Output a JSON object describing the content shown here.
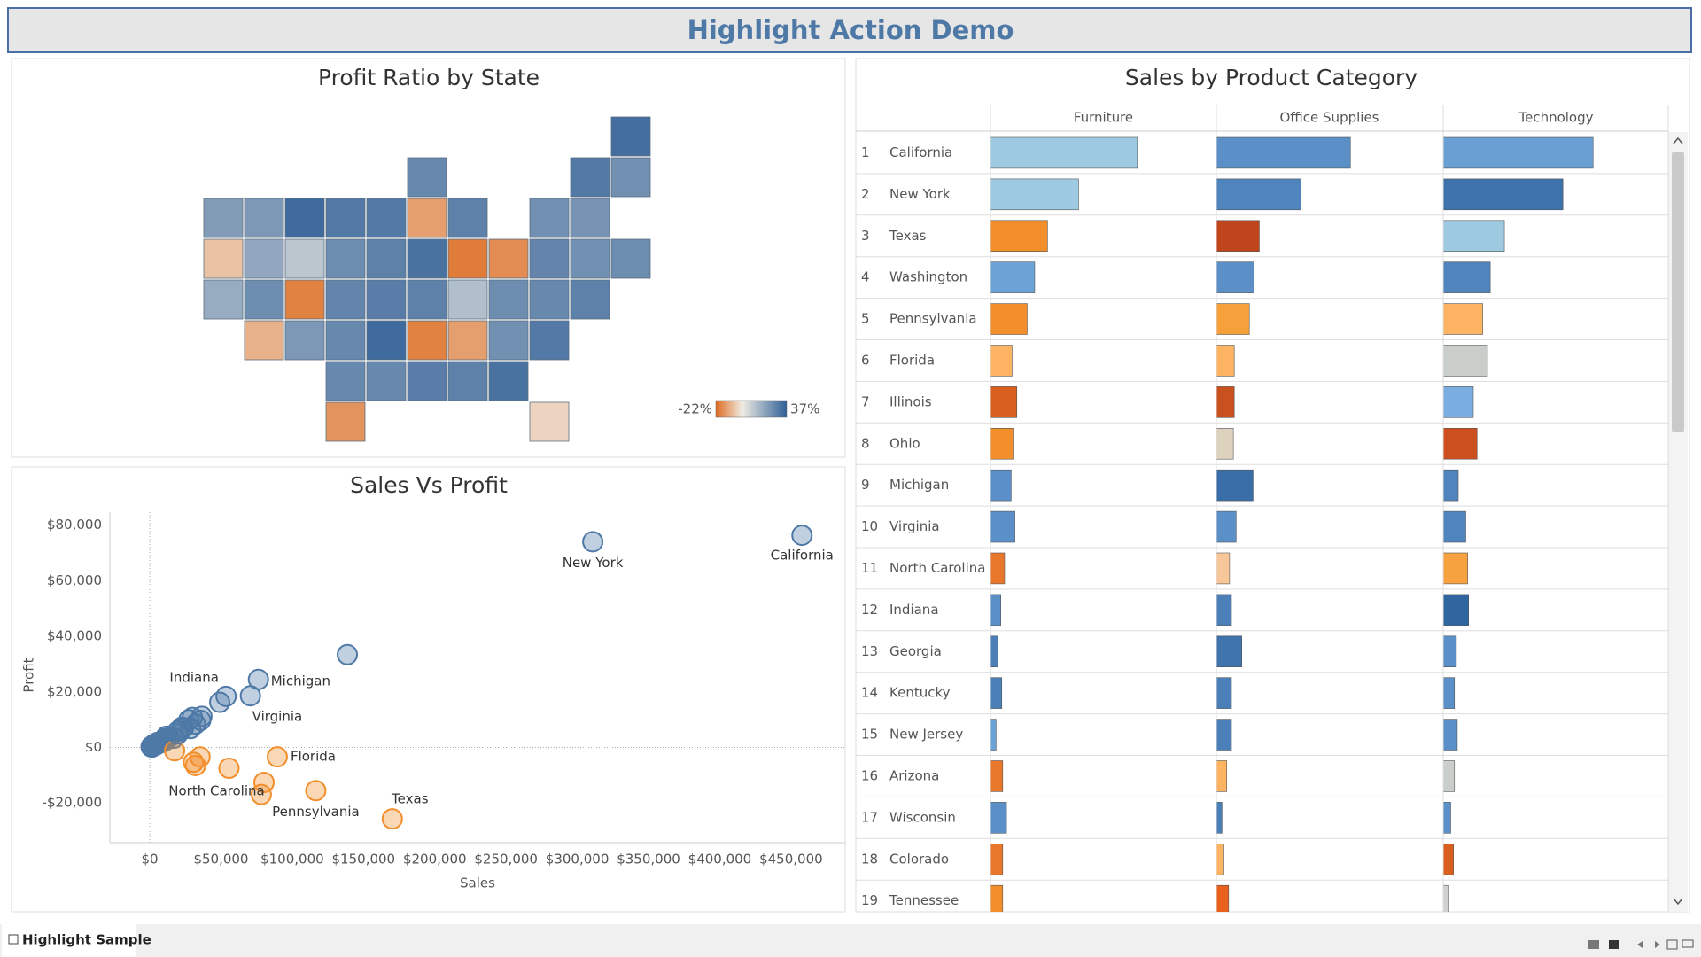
{
  "header": {
    "title": "Highlight Action Demo"
  },
  "chart_data": [
    {
      "type": "map",
      "title": "Profit Ratio by State",
      "values": [
        21,
        -7,
        17,
        18,
        22,
        34,
        10,
        25,
        -10,
        -18,
        22,
        30,
        25,
        27,
        26,
        26,
        -15,
        30,
        28,
        29,
        34,
        26,
        26,
        -13,
        28,
        32,
        -19,
        28,
        -18,
        29,
        28,
        32,
        -4,
        24,
        -13,
        25,
        12,
        -16,
        24,
        30,
        24,
        33,
        23,
        24,
        25,
        27,
        28,
        26,
        30
      ],
      "color_range": [
        -22,
        37
      ],
      "colors": [
        "#de6a1e",
        "#efece4",
        "#2f5f97"
      ],
      "legend_ticks": [
        {
          "value": -22,
          "label": "-22%"
        },
        {
          "value": 37,
          "label": "37%"
        }
      ]
    },
    {
      "type": "scatter",
      "title": "Sales Vs Profit",
      "x_label": "Sales",
      "y_label": "Profit",
      "x": [
        457688,
        310876,
        138641,
        170188,
        116512,
        80166,
        78258,
        89474,
        76270,
        70637,
        53555,
        55603,
        49096,
        36592,
        35764,
        35282,
        32115,
        32108,
        30662,
        29863,
        28634,
        27451,
        23706,
        22628,
        22205,
        19683,
        19511,
        17431,
        16729,
        13384,
        11678,
        11220,
        10771,
        9217,
        8929,
        8482,
        7465,
        7293,
        5589,
        4784,
        4580,
        2914,
        4382,
        2865,
        1603,
        1316,
        1271,
        1210,
        920
      ],
      "y": [
        76381,
        74039,
        33403,
        -25729,
        -15560,
        -12608,
        -16971,
        -3399,
        24463,
        18598,
        18383,
        -7491,
        16250,
        11200,
        9773,
        -3428,
        8402,
        -6528,
        -5342,
        10823,
        6786,
        9977,
        7031,
        7286,
        6436,
        4853,
        5787,
        -1190,
        3317,
        3511,
        4009,
        2547,
        3172,
        2196,
        2245,
        1769,
        2037,
        1707,
        1834,
        1157,
        1184,
        836,
        827,
        1060,
        100,
        395,
        454,
        186,
        230
      ],
      "labels": [
        "California",
        "New York",
        null,
        "Texas",
        "Pennsylvania",
        null,
        null,
        "Florida",
        "Michigan",
        "Virginia",
        "Indiana",
        "North Carolina",
        null,
        null,
        null,
        null,
        null,
        null,
        null,
        null,
        null,
        null,
        null,
        null,
        null,
        null,
        null,
        null,
        null,
        null,
        null,
        null,
        null,
        null,
        null,
        null,
        null,
        null,
        null,
        null,
        null,
        null,
        null,
        null,
        null,
        null,
        null,
        null,
        null
      ],
      "xlim": [
        -28000,
        488000
      ],
      "ylim": [
        -34300,
        84700
      ],
      "xticks": [
        {
          "value": 0,
          "label": "$0"
        },
        {
          "value": 50000,
          "label": "$50,000"
        },
        {
          "value": 100000,
          "label": "$100,000"
        },
        {
          "value": 150000,
          "label": "$150,000"
        },
        {
          "value": 200000,
          "label": "$200,000"
        },
        {
          "value": 250000,
          "label": "$250,000"
        },
        {
          "value": 300000,
          "label": "$300,000"
        },
        {
          "value": 350000,
          "label": "$350,000"
        },
        {
          "value": 400000,
          "label": "$400,000"
        },
        {
          "value": 450000,
          "label": "$450,000"
        }
      ],
      "yticks": [
        {
          "value": -20000,
          "label": "-$20,000"
        },
        {
          "value": 0,
          "label": "$0"
        },
        {
          "value": 20000,
          "label": "$20,000"
        },
        {
          "value": 40000,
          "label": "$40,000"
        },
        {
          "value": 60000,
          "label": "$60,000"
        },
        {
          "value": 80000,
          "label": "$80,000"
        }
      ],
      "positive_color": "#4e79a7",
      "negative_color": "#f28e2b"
    },
    {
      "type": "bar",
      "orientation": "horizontal",
      "title": "Sales by Product Category",
      "ranks": [
        1,
        2,
        3,
        4,
        5,
        6,
        7,
        8,
        9,
        10,
        11,
        12,
        13,
        14,
        15,
        16,
        17,
        18,
        19
      ],
      "categories": [
        "California",
        "New York",
        "Texas",
        "Washington",
        "Pennsylvania",
        "Florida",
        "Illinois",
        "Ohio",
        "Michigan",
        "Virginia",
        "North Carolina",
        "Indiana",
        "Georgia",
        "Kentucky",
        "New Jersey",
        "Arizona",
        "Wisconsin",
        "Colorado",
        "Tennessee"
      ],
      "xlim": [
        0,
        240000
      ],
      "series": [
        {
          "name": "Furniture",
          "values": [
            156065,
            93573,
            60593,
            47000,
            39000,
            23000,
            28000,
            24000,
            22000,
            26000,
            15000,
            11000,
            8000,
            12000,
            6000,
            13000,
            17000,
            13000,
            13000
          ],
          "colors": [
            "#9ecae1",
            "#9ecae1",
            "#f28e2b",
            "#6ba3d6",
            "#f28e2b",
            "#fdb462",
            "#d95f1e",
            "#f28e2b",
            "#5b8fc7",
            "#5b8fc7",
            "#e8762b",
            "#5b8fc7",
            "#4a7fb8",
            "#4a7fb8",
            "#6ba3d6",
            "#e8762b",
            "#5b8fc7",
            "#e8762b",
            "#f28e2b"
          ]
        },
        {
          "name": "Office Supplies",
          "values": [
            142352,
            90060,
            45611,
            40000,
            35000,
            19000,
            19000,
            18000,
            39000,
            21000,
            14000,
            16000,
            27000,
            16000,
            16000,
            11000,
            6000,
            8000,
            13000
          ],
          "colors": [
            "#5b8fc7",
            "#4f84bc",
            "#c0441c",
            "#5b8fc7",
            "#f5a03b",
            "#fdb462",
            "#c9501f",
            "#ddd2bd",
            "#3a6ea8",
            "#5b8fc7",
            "#f7c799",
            "#4a7fb8",
            "#3f74ad",
            "#4a7fb8",
            "#4a7fb8",
            "#fdb462",
            "#4a7fb8",
            "#fdb462",
            "#e8621e"
          ]
        },
        {
          "name": "Technology",
          "values": [
            159271,
            127213,
            65000,
            50000,
            42000,
            47000,
            32000,
            36000,
            16000,
            24000,
            26000,
            27000,
            14000,
            12000,
            15000,
            12000,
            8000,
            11000,
            5000
          ],
          "colors": [
            "#6a9fd4",
            "#3d72ab",
            "#9ecae1",
            "#4f84bc",
            "#fdb462",
            "#c9ceca",
            "#7aaee0",
            "#cc4f1f",
            "#4f84bc",
            "#4f84bc",
            "#f7a240",
            "#2f66a0",
            "#5b8fc7",
            "#5b8fc7",
            "#5b8fc7",
            "#c9ceca",
            "#5b8fc7",
            "#d95f1e",
            "#d0d0d0"
          ]
        }
      ]
    }
  ],
  "tab": "Highlight Sample"
}
